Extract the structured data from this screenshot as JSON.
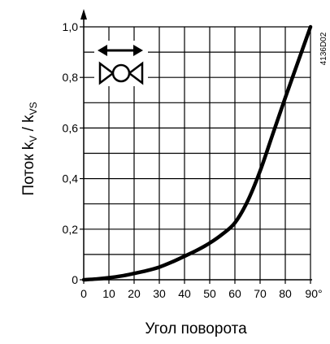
{
  "chart_data": {
    "type": "line",
    "xlabel": "Угол поворота",
    "ylabel_main": "Поток k",
    "ylabel_sub1": "V",
    "ylabel_mid": " / k",
    "ylabel_sub2": "VS",
    "code": "4136D02",
    "xlim": [
      0,
      90
    ],
    "ylim": [
      0,
      1.0
    ],
    "grid": true,
    "x_ticks": [
      "0",
      "10",
      "20",
      "30",
      "40",
      "50",
      "60",
      "70",
      "80",
      "90°"
    ],
    "x_tick_values": [
      0,
      10,
      20,
      30,
      40,
      50,
      60,
      70,
      80,
      90
    ],
    "y_ticks": [
      "0",
      "0,2",
      "0,4",
      "0,6",
      "0,8",
      "1,0"
    ],
    "y_tick_values": [
      0,
      0.2,
      0.4,
      0.6,
      0.8,
      1.0
    ],
    "x_grid": [
      0,
      10,
      20,
      30,
      40,
      50,
      60,
      70,
      80,
      90
    ],
    "y_grid": [
      0,
      0.1,
      0.2,
      0.3,
      0.4,
      0.5,
      0.6,
      0.7,
      0.8,
      0.9,
      1.0
    ],
    "series": [
      {
        "x": [
          0,
          5,
          10,
          15,
          20,
          25,
          30,
          35,
          40,
          45,
          50,
          55,
          60,
          65,
          70,
          75,
          80,
          85,
          90
        ],
        "y": [
          0,
          0.003,
          0.008,
          0.015,
          0.025,
          0.036,
          0.05,
          0.07,
          0.093,
          0.117,
          0.145,
          0.18,
          0.225,
          0.31,
          0.43,
          0.575,
          0.72,
          0.86,
          1.0
        ]
      }
    ],
    "icon": "rotary-valve-bidirectional-arrow-icon"
  }
}
